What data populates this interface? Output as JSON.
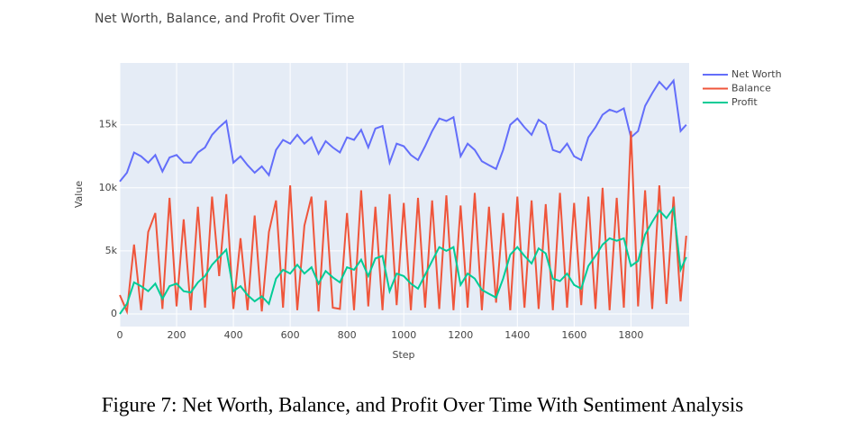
{
  "chart_data": {
    "type": "line",
    "title": "Net Worth, Balance, and Profit Over Time",
    "xlabel": "Step",
    "ylabel": "Value",
    "caption": "Figure 7: Net Worth, Balance, and Profit Over Time With Sentiment Analysis",
    "x": [
      0,
      25,
      50,
      75,
      100,
      125,
      150,
      175,
      200,
      225,
      250,
      275,
      300,
      325,
      350,
      375,
      400,
      425,
      450,
      475,
      500,
      525,
      550,
      575,
      600,
      625,
      650,
      675,
      700,
      725,
      750,
      775,
      800,
      825,
      850,
      875,
      900,
      925,
      950,
      975,
      1000,
      1025,
      1050,
      1075,
      1100,
      1125,
      1150,
      1175,
      1200,
      1225,
      1250,
      1275,
      1300,
      1325,
      1350,
      1375,
      1400,
      1425,
      1450,
      1475,
      1500,
      1525,
      1550,
      1575,
      1600,
      1625,
      1650,
      1675,
      1700,
      1725,
      1750,
      1775,
      1800,
      1825,
      1850,
      1875,
      1900,
      1925,
      1950,
      1975,
      1995
    ],
    "series": [
      {
        "name": "Net Worth",
        "color": "#636efa",
        "values": [
          10500,
          11200,
          12800,
          12500,
          12000,
          12600,
          11300,
          12400,
          12600,
          12000,
          12000,
          12800,
          13200,
          14200,
          14800,
          15300,
          12000,
          12500,
          11800,
          11200,
          11700,
          11000,
          13000,
          13800,
          13500,
          14200,
          13500,
          14000,
          12700,
          13700,
          13200,
          12800,
          14000,
          13800,
          14600,
          13200,
          14700,
          14900,
          12000,
          13500,
          13300,
          12600,
          12200,
          13300,
          14500,
          15500,
          15300,
          15600,
          12500,
          13500,
          13000,
          12100,
          11800,
          11500,
          13000,
          15000,
          15500,
          14800,
          14200,
          15400,
          15000,
          13000,
          12800,
          13500,
          12500,
          12200,
          14000,
          14800,
          15800,
          16200,
          16000,
          16300,
          14000,
          14500,
          16500,
          17500,
          18400,
          17800,
          18500,
          14500,
          15000
        ]
      },
      {
        "name": "Balance",
        "color": "#EF553B",
        "values": [
          1500,
          200,
          5500,
          300,
          6500,
          8000,
          400,
          9200,
          600,
          7500,
          300,
          8500,
          500,
          9300,
          3000,
          9500,
          400,
          6000,
          300,
          7800,
          200,
          6500,
          9000,
          500,
          10200,
          300,
          7000,
          9300,
          200,
          9000,
          500,
          400,
          8000,
          300,
          9800,
          600,
          8500,
          300,
          9500,
          700,
          8800,
          300,
          9200,
          500,
          9000,
          400,
          9400,
          300,
          8600,
          500,
          9600,
          300,
          8500,
          900,
          8000,
          300,
          9300,
          500,
          9000,
          400,
          8700,
          300,
          9600,
          500,
          8800,
          700,
          9300,
          400,
          10000,
          300,
          9200,
          500,
          14500,
          600,
          9800,
          400,
          10200,
          800,
          9300,
          1000,
          6200
        ]
      },
      {
        "name": "Profit",
        "color": "#00cc96",
        "values": [
          0,
          800,
          2500,
          2200,
          1800,
          2400,
          1200,
          2200,
          2400,
          1800,
          1700,
          2500,
          3000,
          3900,
          4500,
          5100,
          1800,
          2200,
          1500,
          1000,
          1400,
          800,
          2800,
          3500,
          3200,
          3900,
          3200,
          3700,
          2400,
          3400,
          2900,
          2500,
          3700,
          3500,
          4300,
          3000,
          4400,
          4600,
          1800,
          3200,
          3000,
          2400,
          2000,
          3100,
          4200,
          5300,
          5000,
          5300,
          2300,
          3200,
          2800,
          1900,
          1600,
          1300,
          2800,
          4700,
          5300,
          4600,
          4000,
          5200,
          4800,
          2800,
          2600,
          3200,
          2300,
          2000,
          3800,
          4600,
          5500,
          6000,
          5800,
          6000,
          3800,
          4200,
          6300,
          7300,
          8200,
          7600,
          8400,
          3500,
          4500
        ]
      }
    ],
    "xlim": [
      0,
      2005
    ],
    "ylim": [
      -1000,
      19900
    ],
    "xticks": [
      0,
      200,
      400,
      600,
      800,
      1000,
      1200,
      1400,
      1600,
      1800
    ],
    "yticks": [
      0,
      {
        "value": 5000,
        "label": "5k"
      },
      {
        "value": 10000,
        "label": "10k"
      },
      {
        "value": 15000,
        "label": "15k"
      }
    ],
    "grid": true,
    "legend": "upper right"
  }
}
